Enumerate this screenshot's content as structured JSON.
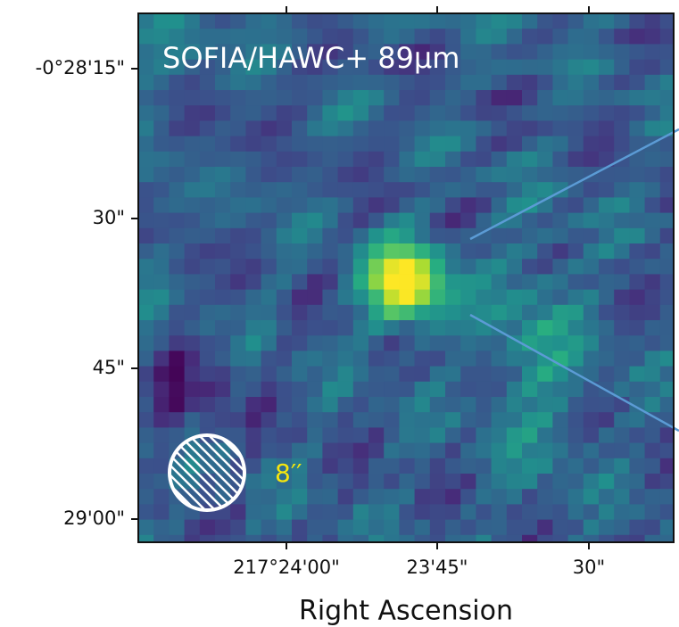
{
  "figure": {
    "title": "SOFIA/HAWC+ 89μm",
    "y_tick_labels": [
      "-0°28'15\"",
      "30\"",
      "45\"",
      "29'00\""
    ],
    "x_tick_labels": [
      "217°24'00\"",
      "23'45\"",
      "30\""
    ],
    "x_label": "Right Ascension",
    "beam_label": "8′′"
  }
}
